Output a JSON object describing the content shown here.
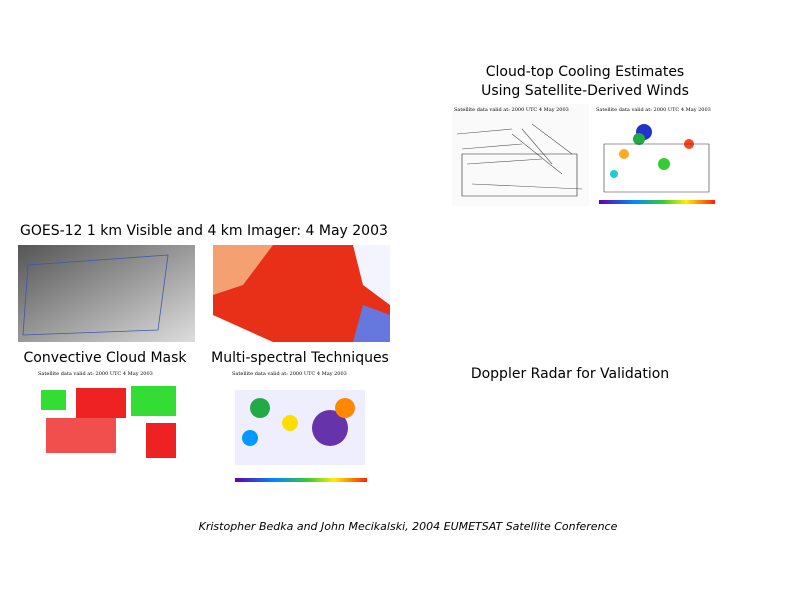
{
  "cloud_top": {
    "title_lines": [
      "Cloud-top Cooling Estimates",
      "Using Satellite-Derived Winds"
    ],
    "image_labels": [
      "Satellite data valid at: 2000 UTC  4 May  2003",
      "Satellite data valid at: 2000 UTC  4 May  2003"
    ]
  },
  "goes_heading": "GOES-12 1 km Visible and 4 km Imager: 4 May 2003",
  "panels": [
    {
      "caption": "Convective Cloud Mask",
      "image_label": "Satellite data valid at: 2000 UTC  4 May  2003"
    },
    {
      "caption": "Multi-spectral Techniques",
      "image_label": "Satellite data valid at: 2000 UTC  4 May  2003"
    }
  ],
  "doppler_caption": "Doppler Radar for Validation",
  "footer": "Kristopher Bedka and John Mecikalski, 2004 EUMETSAT Satellite Conference"
}
